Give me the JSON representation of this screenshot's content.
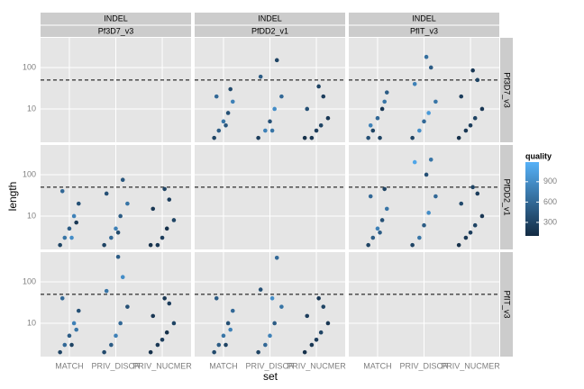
{
  "chart_data": {
    "type": "scatter",
    "x_label": "set",
    "y_label": "length",
    "top_strip": "INDEL",
    "columns": [
      "Pf3D7_v3",
      "PfDD2_v1",
      "PfIT_v3"
    ],
    "rows": [
      "Pf3D7_v3",
      "PfDD2_v1",
      "PfIT_v3"
    ],
    "xlim": [
      0.38,
      3.62
    ],
    "xticks": [
      {
        "value": 1,
        "label": "MATCH"
      },
      {
        "value": 2,
        "label": "PRIV_DISCR"
      },
      {
        "value": 3,
        "label": "PRIV_NUCMER"
      }
    ],
    "ylim": [
      1.57,
      520
    ],
    "log_y": true,
    "yticks": [
      10,
      100
    ],
    "grid": true,
    "hline": 50,
    "legend_title": "quality",
    "clim": [
      100,
      1190
    ],
    "legend_ticks": [
      300,
      600,
      900
    ],
    "low_color": "#132B43",
    "high_color": "#56B1F7",
    "cells": [
      [
        {
          "x": [],
          "y": [],
          "quality": []
        },
        {
          "x": [
            0.8,
            0.9,
            1.0,
            1.1,
            1.2,
            0.85,
            1.15,
            1.05,
            1.75,
            1.9,
            2.0,
            2.1,
            2.25,
            1.8,
            2.15,
            2.05,
            2.75,
            2.9,
            3.0,
            3.1,
            3.25,
            2.8,
            3.15,
            3.05
          ],
          "y": [
            2,
            3,
            5,
            8,
            15,
            20,
            30,
            4,
            2,
            3,
            5,
            10,
            20,
            60,
            150,
            3,
            2,
            2,
            3,
            4,
            6,
            10,
            20,
            35
          ],
          "quality": [
            300,
            500,
            700,
            400,
            800,
            600,
            350,
            450,
            250,
            800,
            400,
            900,
            600,
            500,
            300,
            700,
            150,
            200,
            250,
            300,
            200,
            400,
            250,
            300
          ]
        },
        {
          "x": [
            0.8,
            0.9,
            1.0,
            1.1,
            1.2,
            0.85,
            1.15,
            1.05,
            1.75,
            1.9,
            2.0,
            2.1,
            2.25,
            1.8,
            2.15,
            2.05,
            2.75,
            2.9,
            3.0,
            3.1,
            3.25,
            2.8,
            3.15,
            3.05
          ],
          "y": [
            2,
            3,
            6,
            10,
            25,
            4,
            15,
            2,
            2,
            3,
            5,
            8,
            15,
            40,
            100,
            180,
            2,
            3,
            4,
            6,
            10,
            20,
            50,
            85
          ],
          "quality": [
            400,
            300,
            600,
            200,
            500,
            800,
            700,
            300,
            300,
            900,
            600,
            1000,
            700,
            800,
            500,
            650,
            150,
            200,
            250,
            300,
            200,
            250,
            300,
            200
          ]
        }
      ],
      [
        {
          "x": [
            0.8,
            0.9,
            1.0,
            1.1,
            1.2,
            0.85,
            1.15,
            1.05,
            1.75,
            1.9,
            2.0,
            2.1,
            2.25,
            1.8,
            2.15,
            2.05,
            2.75,
            2.9,
            3.0,
            3.1,
            3.25,
            2.8,
            3.15,
            3.05
          ],
          "y": [
            2,
            3,
            5,
            10,
            20,
            40,
            7,
            3,
            2,
            3,
            5,
            10,
            20,
            35,
            75,
            4,
            2,
            2,
            3,
            5,
            8,
            15,
            25,
            45
          ],
          "quality": [
            300,
            700,
            500,
            800,
            400,
            600,
            200,
            900,
            300,
            600,
            800,
            500,
            700,
            400,
            450,
            350,
            150,
            200,
            250,
            150,
            300,
            200,
            250,
            300
          ]
        },
        {
          "x": [],
          "y": [],
          "quality": []
        },
        {
          "x": [
            0.8,
            0.9,
            1.0,
            1.1,
            1.2,
            0.85,
            1.15,
            1.05,
            1.75,
            1.9,
            2.0,
            2.1,
            2.25,
            1.8,
            2.15,
            2.05,
            2.75,
            2.9,
            3.0,
            3.1,
            3.25,
            2.8,
            3.15,
            3.05
          ],
          "y": [
            2,
            3,
            5,
            8,
            15,
            30,
            45,
            4,
            2,
            3,
            6,
            12,
            30,
            200,
            230,
            100,
            2,
            3,
            4,
            6,
            10,
            20,
            35,
            50
          ],
          "quality": [
            300,
            500,
            800,
            400,
            700,
            600,
            300,
            500,
            300,
            700,
            500,
            900,
            600,
            1100,
            700,
            400,
            150,
            200,
            250,
            300,
            200,
            350,
            250,
            300
          ]
        }
      ],
      [
        {
          "x": [
            0.8,
            0.9,
            1.0,
            1.1,
            1.2,
            0.85,
            1.15,
            1.05,
            1.75,
            1.9,
            2.0,
            2.1,
            2.25,
            1.8,
            2.15,
            2.05,
            2.75,
            2.9,
            3.0,
            3.1,
            3.25,
            2.8,
            3.15,
            3.05
          ],
          "y": [
            2,
            3,
            5,
            10,
            20,
            40,
            7,
            3,
            2,
            3,
            5,
            10,
            25,
            60,
            130,
            400,
            2,
            3,
            4,
            6,
            10,
            15,
            30,
            40
          ],
          "quality": [
            300,
            600,
            500,
            800,
            400,
            600,
            700,
            300,
            350,
            500,
            800,
            600,
            400,
            700,
            900,
            500,
            150,
            200,
            250,
            150,
            300,
            200,
            250,
            200
          ]
        },
        {
          "x": [
            0.8,
            0.9,
            1.0,
            1.1,
            1.2,
            0.85,
            1.15,
            1.05,
            1.75,
            1.9,
            2.0,
            2.1,
            2.25,
            1.8,
            2.15,
            2.05,
            2.75,
            2.9,
            3.0,
            3.1,
            3.25,
            2.8,
            3.15,
            3.05
          ],
          "y": [
            2,
            3,
            5,
            10,
            20,
            40,
            7,
            3,
            2,
            3,
            5,
            10,
            25,
            65,
            380,
            40,
            2,
            3,
            4,
            6,
            10,
            15,
            25,
            40
          ],
          "quality": [
            350,
            500,
            700,
            400,
            600,
            500,
            800,
            300,
            300,
            600,
            800,
            500,
            700,
            400,
            600,
            900,
            150,
            200,
            250,
            300,
            200,
            250,
            300,
            200
          ]
        },
        {
          "x": [],
          "y": [],
          "quality": []
        }
      ]
    ]
  }
}
